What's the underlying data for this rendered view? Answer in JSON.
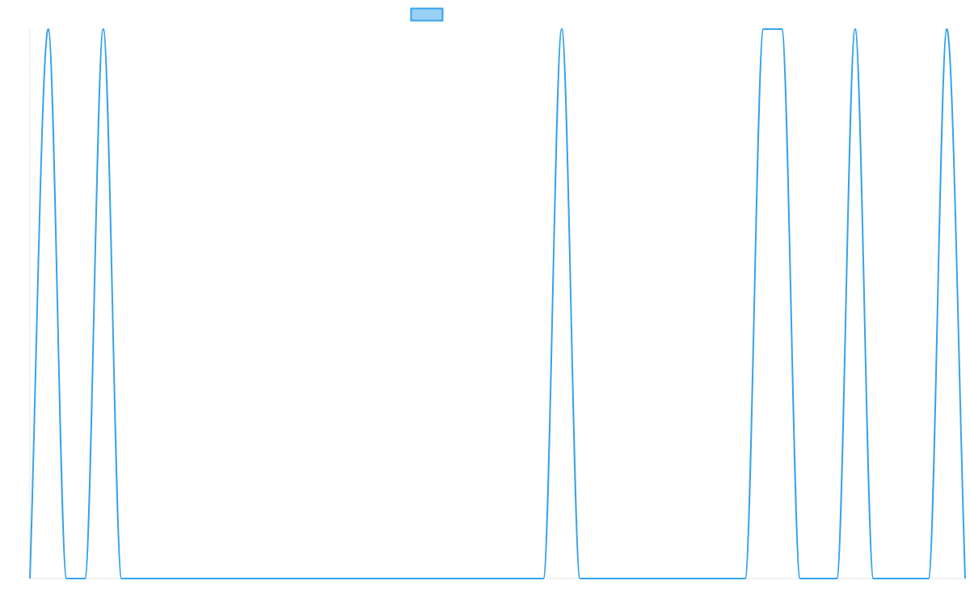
{
  "chart_data": {
    "type": "line",
    "title": "",
    "xlabel": "",
    "ylabel": "",
    "x": [
      0,
      1,
      2,
      3,
      4,
      5,
      6,
      7,
      8,
      9,
      10,
      11,
      12,
      13,
      14,
      15,
      16,
      17,
      18,
      19,
      20,
      21,
      22,
      23,
      24,
      25,
      26,
      27,
      28,
      29,
      30,
      31,
      32,
      33,
      34,
      35,
      36,
      37,
      38,
      39,
      40,
      41,
      42,
      43,
      44,
      45,
      46,
      47,
      48,
      49,
      50,
      51
    ],
    "series": [
      {
        "name": "",
        "values": [
          0,
          1,
          0,
          0,
          1,
          0,
          0,
          0,
          0,
          0,
          0,
          0,
          0,
          0,
          0,
          0,
          0,
          0,
          0,
          0,
          0,
          0,
          0,
          0,
          0,
          0,
          0,
          0,
          0,
          1,
          0,
          0,
          0,
          0,
          0,
          0,
          0,
          0,
          0,
          0,
          1,
          1,
          0,
          0,
          0,
          1,
          0,
          0,
          0,
          0,
          1,
          0
        ]
      }
    ],
    "xlim": [
      0,
      51
    ],
    "ylim": [
      0,
      1
    ],
    "grid": false,
    "legend": "top-center",
    "colors": {
      "line": "#36a2eb",
      "legend_fill": "#9ad0f5",
      "axis": "#e6e6e6"
    }
  }
}
